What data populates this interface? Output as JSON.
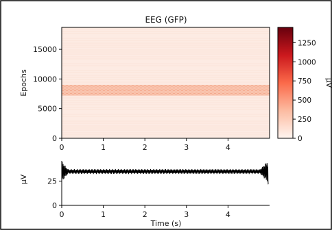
{
  "chart_data": [
    {
      "type": "heatmap",
      "title": "EEG (GFP)",
      "xlabel": "",
      "ylabel": "Epochs",
      "xlim": [
        0,
        5
      ],
      "ylim": [
        0,
        18700
      ],
      "x_ticks": [
        0,
        1,
        2,
        3,
        4
      ],
      "x_tick_labels": [
        "0",
        "1",
        "2",
        "3",
        "4"
      ],
      "y_ticks": [
        0,
        5000,
        10000,
        15000
      ],
      "y_tick_labels": [
        "0",
        "5000",
        "10000",
        "15000"
      ],
      "colormap": "Reds",
      "colorbar": {
        "label": "µV",
        "range": [
          0,
          1450
        ],
        "ticks": [
          0,
          250,
          500,
          750,
          1000,
          1250
        ],
        "tick_labels": [
          "0",
          "250",
          "500",
          "750",
          "1000",
          "1250"
        ]
      },
      "background_level_uv": 35,
      "bands": [
        {
          "y_from": 7200,
          "y_to": 9000,
          "level_uv": 130
        }
      ]
    },
    {
      "type": "line",
      "title": "",
      "xlabel": "Time (s)",
      "ylabel": "µV",
      "xlim": [
        0,
        5
      ],
      "ylim": [
        0,
        46
      ],
      "x_ticks": [
        0,
        1,
        2,
        3,
        4
      ],
      "x_tick_labels": [
        "0",
        "1",
        "2",
        "3",
        "4"
      ],
      "y_ticks": [
        0,
        25
      ],
      "y_tick_labels": [
        "0",
        "25"
      ],
      "color": "#000000",
      "series_description_values": {
        "mean_level": 35,
        "start_peak": 43,
        "end_peak": 44,
        "end_dip": 22
      }
    }
  ]
}
